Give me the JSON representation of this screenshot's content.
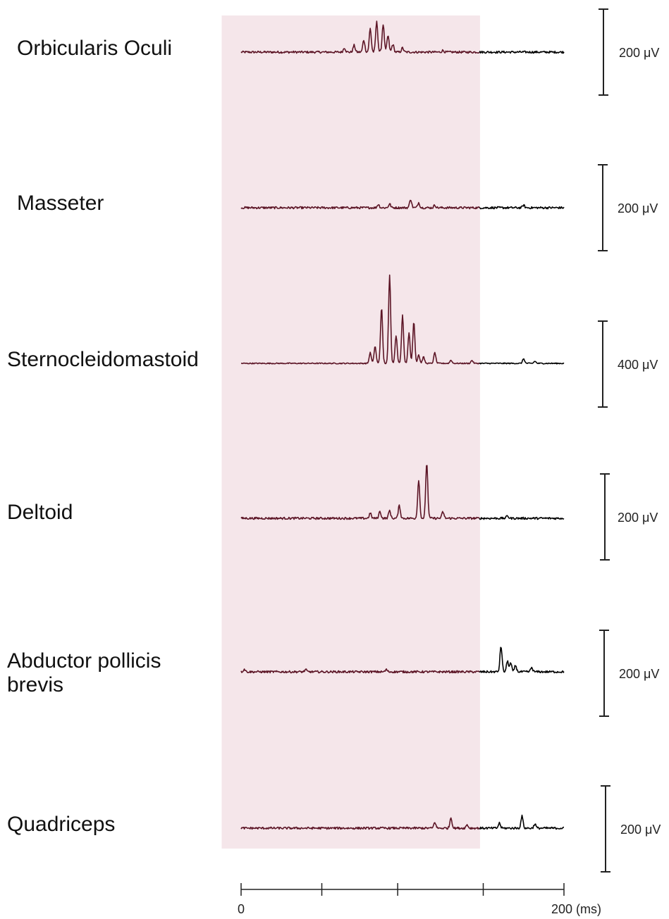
{
  "chart_data": {
    "type": "line",
    "x_axis": {
      "min": 0,
      "max": 200,
      "unit": "ms",
      "tick_values": [
        0,
        50,
        97,
        150,
        200
      ],
      "tick_labels": [
        "0",
        "",
        "",
        "",
        "200 (ms)"
      ]
    },
    "highlight_window": {
      "x_from": -12,
      "x_to": 148,
      "color": "#f5e6ea"
    },
    "colors": {
      "inside_window": "#5c1526",
      "outside_window": "#000000",
      "scale_bar": "#222222"
    },
    "rows": [
      {
        "label": "Orbicularis Oculi",
        "scale_label": "200 μV",
        "scale_uV": 200,
        "peaks": [
          {
            "x": 64,
            "amp": 10
          },
          {
            "x": 70,
            "amp": 16
          },
          {
            "x": 76,
            "amp": 28
          },
          {
            "x": 80,
            "amp": 55
          },
          {
            "x": 84,
            "amp": 70
          },
          {
            "x": 88,
            "amp": 65
          },
          {
            "x": 91,
            "amp": 38
          },
          {
            "x": 94,
            "amp": 18
          },
          {
            "x": 100,
            "amp": 10
          },
          {
            "x": 125,
            "amp": 4
          }
        ]
      },
      {
        "label": "Masseter",
        "scale_label": "200 μV",
        "scale_uV": 200,
        "peaks": [
          {
            "x": 85,
            "amp": 8
          },
          {
            "x": 92,
            "amp": 9
          },
          {
            "x": 105,
            "amp": 20
          },
          {
            "x": 110,
            "amp": 12
          },
          {
            "x": 120,
            "amp": 6
          },
          {
            "x": 175,
            "amp": 6
          }
        ]
      },
      {
        "label": "Sternocleidomastoid",
        "scale_label": "400 μV",
        "scale_uV": 400,
        "peaks": [
          {
            "x": 80,
            "amp": 50
          },
          {
            "x": 83,
            "amp": 80
          },
          {
            "x": 87,
            "amp": 260
          },
          {
            "x": 92,
            "amp": 410
          },
          {
            "x": 96,
            "amp": 130
          },
          {
            "x": 100,
            "amp": 225
          },
          {
            "x": 104,
            "amp": 140
          },
          {
            "x": 107,
            "amp": 195
          },
          {
            "x": 110,
            "amp": 40
          },
          {
            "x": 113,
            "amp": 30
          },
          {
            "x": 120,
            "amp": 50
          },
          {
            "x": 130,
            "amp": 15
          },
          {
            "x": 143,
            "amp": 14
          },
          {
            "x": 175,
            "amp": 22
          },
          {
            "x": 182,
            "amp": 10
          }
        ]
      },
      {
        "label": "Deltoid",
        "scale_label": "200 μV",
        "scale_uV": 200,
        "peaks": [
          {
            "x": 80,
            "amp": 12
          },
          {
            "x": 86,
            "amp": 16
          },
          {
            "x": 92,
            "amp": 18
          },
          {
            "x": 98,
            "amp": 30
          },
          {
            "x": 110,
            "amp": 90
          },
          {
            "x": 115,
            "amp": 130
          },
          {
            "x": 125,
            "amp": 15
          },
          {
            "x": 165,
            "amp": 6
          }
        ]
      },
      {
        "label": "Abductor pollicis brevis",
        "scale_label": "200 μV",
        "scale_uV": 200,
        "peaks": [
          {
            "x": 2,
            "amp": 6
          },
          {
            "x": 40,
            "amp": 5
          },
          {
            "x": 90,
            "amp": 5
          },
          {
            "x": 161,
            "amp": 60
          },
          {
            "x": 165,
            "amp": 25
          },
          {
            "x": 167,
            "amp": 20
          },
          {
            "x": 170,
            "amp": 15
          },
          {
            "x": 180,
            "amp": 10
          }
        ]
      },
      {
        "label": "Quadriceps",
        "scale_label": "200 μV",
        "scale_uV": 200,
        "peaks": [
          {
            "x": 120,
            "amp": 14
          },
          {
            "x": 130,
            "amp": 25
          },
          {
            "x": 140,
            "amp": 8
          },
          {
            "x": 160,
            "amp": 12
          },
          {
            "x": 174,
            "amp": 28
          },
          {
            "x": 182,
            "amp": 10
          }
        ]
      }
    ]
  }
}
